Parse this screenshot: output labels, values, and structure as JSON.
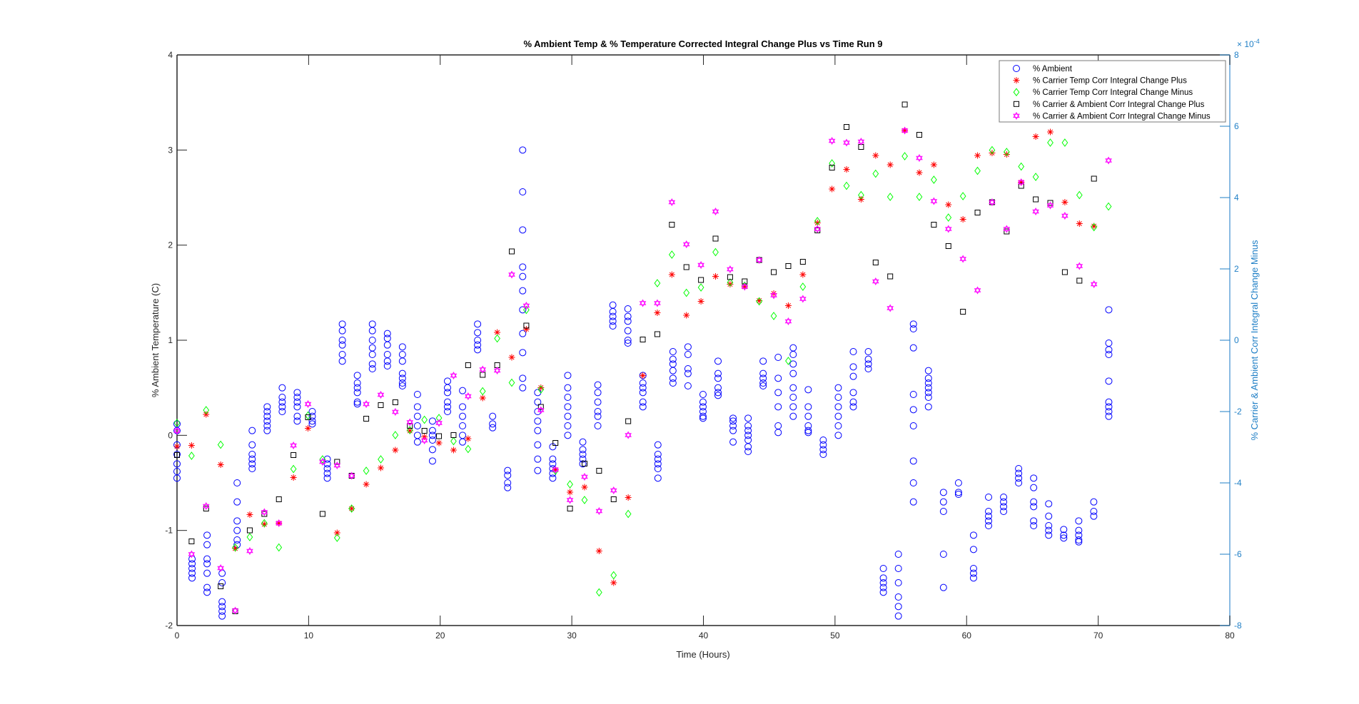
{
  "chart_data": {
    "type": "scatter",
    "title": "% Ambient Temp & % Temperature Corrected Integral Change Plus vs Time Run 9",
    "xlabel": "Time (Hours)",
    "ylabel_left": "% Ambient Temperature (C)",
    "ylabel_right": "% Carrier & Ambient Corr Integral Change Minus",
    "right_axis_exponent_label": "× 10",
    "right_axis_exponent": "-4",
    "xlim": [
      0,
      80
    ],
    "ylim_left": [
      -2,
      4
    ],
    "ylim_right": [
      -8,
      8
    ],
    "right_axis_scale": 0.0001,
    "xticks": [
      "0",
      "10",
      "20",
      "30",
      "40",
      "50",
      "60",
      "70",
      "80"
    ],
    "yticks_left": [
      "-2",
      "-1",
      "0",
      "1",
      "2",
      "3",
      "4"
    ],
    "yticks_right": [
      "-8",
      "-6",
      "-4",
      "-2",
      "0",
      "2",
      "4",
      "6",
      "8"
    ],
    "grid": false,
    "legend_position": "top-right",
    "axis_color": "#262626",
    "right_axis_color": "#1f7fc6",
    "series": [
      {
        "name": "% Ambient",
        "marker": "circle",
        "color": "#0000ff",
        "axis": "left",
        "time_start": 0,
        "time_step": 1.142,
        "groups": [
          [
            0.12,
            0.05,
            -0.1,
            -0.2,
            -0.3,
            -0.38,
            -0.45
          ],
          [
            -1.3,
            -1.35,
            -1.4,
            -1.45,
            -1.5
          ],
          [
            -1.05,
            -1.15,
            -1.3,
            -1.35,
            -1.45,
            -1.6,
            -1.65
          ],
          [
            -1.45,
            -1.55,
            -1.75,
            -1.8,
            -1.85,
            -1.9
          ],
          [
            -0.5,
            -0.7,
            -0.9,
            -1.0,
            -1.1,
            -1.15
          ],
          [
            0.05,
            -0.1,
            -0.2,
            -0.25,
            -0.3,
            -0.35
          ],
          [
            0.3,
            0.25,
            0.2,
            0.15,
            0.1,
            0.05
          ],
          [
            0.5,
            0.4,
            0.35,
            0.3,
            0.25
          ],
          [
            0.45,
            0.4,
            0.35,
            0.3,
            0.2,
            0.15
          ],
          [
            0.25,
            0.2,
            0.15,
            0.12
          ],
          [
            -0.25,
            -0.3,
            -0.35,
            -0.4,
            -0.45
          ],
          [
            1.17,
            1.1,
            1.0,
            0.95,
            0.85,
            0.78
          ],
          [
            0.63,
            0.55,
            0.5,
            0.45,
            0.35,
            0.33
          ],
          [
            1.17,
            1.1,
            1.0,
            0.92,
            0.85,
            0.75,
            0.7
          ],
          [
            1.07,
            1.02,
            0.95,
            0.85,
            0.78,
            0.73
          ],
          [
            0.93,
            0.85,
            0.78,
            0.65,
            0.6,
            0.55,
            0.52
          ],
          [
            0.43,
            0.3,
            0.2,
            0.1,
            0.0,
            -0.07
          ],
          [
            0.15,
            0.05,
            0.0,
            -0.05,
            -0.15,
            -0.27
          ],
          [
            0.57,
            0.5,
            0.45,
            0.35,
            0.3,
            0.25
          ],
          [
            0.47,
            0.3,
            0.2,
            0.1,
            0.0,
            -0.07
          ],
          [
            1.17,
            1.08,
            1.0,
            0.95,
            0.9
          ],
          [
            0.2,
            0.12,
            0.08
          ],
          [
            -0.37,
            -0.42,
            -0.5,
            -0.55
          ],
          [
            3.0,
            2.56,
            2.16,
            1.77,
            1.67,
            1.52,
            1.32,
            1.07,
            0.87,
            0.6,
            0.5
          ],
          [
            0.45,
            0.35,
            0.25,
            0.15,
            0.05,
            -0.1,
            -0.25,
            -0.37
          ],
          [
            -0.12,
            -0.25,
            -0.3,
            -0.35,
            -0.4,
            -0.45
          ],
          [
            0.63,
            0.5,
            0.4,
            0.3,
            0.2,
            0.1,
            0.0
          ],
          [
            -0.07,
            -0.15,
            -0.2,
            -0.25,
            -0.3
          ],
          [
            0.53,
            0.45,
            0.35,
            0.25,
            0.2,
            0.1
          ],
          [
            1.37,
            1.3,
            1.25,
            1.2,
            1.15
          ],
          [
            1.33,
            1.25,
            1.2,
            1.1,
            1.0,
            0.97
          ],
          [
            0.63,
            0.55,
            0.5,
            0.45,
            0.35,
            0.3
          ],
          [
            -0.1,
            -0.2,
            -0.25,
            -0.3,
            -0.35,
            -0.45
          ],
          [
            0.88,
            0.8,
            0.75,
            0.68,
            0.6,
            0.55
          ],
          [
            0.93,
            0.85,
            0.7,
            0.65,
            0.52
          ],
          [
            0.43,
            0.35,
            0.3,
            0.25,
            0.2,
            0.18
          ],
          [
            0.78,
            0.65,
            0.6,
            0.5,
            0.45,
            0.42
          ],
          [
            0.18,
            0.15,
            0.1,
            0.05,
            -0.07
          ],
          [
            0.18,
            0.1,
            0.05,
            0.0,
            -0.05,
            -0.12,
            -0.17
          ],
          [
            0.78,
            0.65,
            0.6,
            0.55,
            0.52
          ],
          [
            0.82,
            0.6,
            0.45,
            0.3,
            0.1,
            0.03
          ],
          [
            0.92,
            0.85,
            0.75,
            0.65,
            0.5,
            0.4,
            0.3,
            0.2
          ],
          [
            0.48,
            0.3,
            0.2,
            0.1,
            0.05,
            0.03
          ],
          [
            -0.05,
            -0.1,
            -0.15,
            -0.2
          ],
          [
            0.5,
            0.4,
            0.3,
            0.2,
            0.1,
            0.0
          ],
          [
            0.88,
            0.72,
            0.62,
            0.45,
            0.35,
            0.3
          ],
          [
            0.88,
            0.8,
            0.75,
            0.7
          ],
          [
            -1.4,
            -1.5,
            -1.55,
            -1.6,
            -1.65
          ],
          [
            -1.25,
            -1.4,
            -1.55,
            -1.7,
            -1.8,
            -1.9
          ],
          [
            1.17,
            1.12,
            0.92,
            0.43,
            0.27,
            0.1,
            -0.27,
            -0.5,
            -0.7
          ],
          [
            0.68,
            0.6,
            0.55,
            0.5,
            0.45,
            0.4,
            0.3
          ],
          [
            -0.6,
            -0.7,
            -0.8,
            -1.25,
            -1.6
          ],
          [
            -0.5,
            -0.6,
            -0.62
          ],
          [
            -1.05,
            -1.2,
            -1.4,
            -1.45,
            -1.5
          ],
          [
            -0.65,
            -0.8,
            -0.85,
            -0.9,
            -0.95
          ],
          [
            -0.65,
            -0.7,
            -0.75,
            -0.8
          ],
          [
            -0.35,
            -0.4,
            -0.45,
            -0.5
          ],
          [
            -0.45,
            -0.55,
            -0.7,
            -0.75,
            -0.9,
            -0.95
          ],
          [
            -0.72,
            -0.85,
            -0.95,
            -1.0,
            -1.05
          ],
          [
            -0.99,
            -1.05,
            -1.08
          ],
          [
            -0.9,
            -1.0,
            -1.05,
            -1.1,
            -1.12
          ],
          [
            -0.7,
            -0.8,
            -0.85
          ],
          [
            1.32,
            0.97,
            0.9,
            0.85,
            0.57,
            0.35,
            0.3,
            0.25,
            0.2
          ]
        ]
      },
      {
        "name": "% Carrier Temp Corr Integral Change Plus",
        "marker": "star",
        "color": "#ff0000",
        "axis": "right",
        "time_start": 0,
        "time_step": 1.106,
        "values_e4": [
          -2.98,
          -2.95,
          -2.08,
          -3.49,
          -5.84,
          -4.89,
          -5.16,
          -5.13,
          -3.85,
          -2.47,
          null,
          -5.4,
          -4.72,
          -4.04,
          -3.58,
          -3.08,
          -2.54,
          -2.71,
          -2.88,
          -3.08,
          -2.76,
          -1.62,
          0.22,
          -0.48,
          0.31,
          -1.33,
          -3.63,
          -4.26,
          -4.12,
          -5.91,
          -6.8,
          -4.41,
          -0.99,
          0.77,
          1.84,
          0.7,
          1.09,
          1.79,
          1.57,
          1.5,
          1.11,
          1.31,
          0.97,
          1.84,
          3.29,
          4.24,
          4.79,
          3.95,
          5.18,
          4.92,
          5.88,
          4.7,
          4.92,
          3.8,
          3.39,
          5.18,
          5.25,
          5.21,
          4.43,
          5.71,
          5.84,
          3.87,
          3.27,
          3.2
        ]
      },
      {
        "name": "% Carrier Temp Corr Integral Change Minus",
        "marker": "diamond",
        "color": "#00ff00",
        "axis": "right",
        "time_start": 0,
        "time_step": 1.106,
        "values_e4": [
          -2.32,
          -3.24,
          -1.96,
          -2.93,
          -5.81,
          -5.52,
          -5.13,
          -5.81,
          -3.61,
          -2.11,
          -3.34,
          -5.54,
          -4.72,
          -3.66,
          -3.34,
          -2.66,
          -2.52,
          -2.23,
          -2.18,
          -2.83,
          -3.05,
          -1.43,
          0.05,
          -1.19,
          0.85,
          -1.38,
          -3.66,
          -4.04,
          -4.48,
          -7.07,
          -6.59,
          -4.87,
          null,
          1.6,
          2.4,
          1.33,
          1.48,
          2.47,
          1.62,
          1.53,
          1.09,
          0.68,
          -0.58,
          1.5,
          3.34,
          4.96,
          4.33,
          4.07,
          4.67,
          4.02,
          5.16,
          4.02,
          4.5,
          3.44,
          4.04,
          4.75,
          5.33,
          5.28,
          4.87,
          4.58,
          5.54,
          5.54,
          4.07,
          3.17,
          3.75
        ]
      },
      {
        "name": "% Carrier & Ambient Corr Integral Change Plus",
        "marker": "square",
        "color": "#000000",
        "axis": "right",
        "time_start": 0,
        "time_step": 1.106,
        "values_e4": [
          -3.22,
          -5.64,
          -4.72,
          -6.9,
          -7.6,
          -5.33,
          -4.87,
          -4.46,
          -3.22,
          -2.16,
          -4.87,
          -3.41,
          -3.8,
          -2.2,
          -1.82,
          -1.74,
          -2.4,
          -2.54,
          -2.69,
          -2.66,
          -0.7,
          -0.97,
          -0.7,
          2.49,
          0.41,
          -1.87,
          -2.88,
          -4.72,
          -3.46,
          -3.66,
          -4.46,
          -2.27,
          0.02,
          0.17,
          3.24,
          2.05,
          1.69,
          2.85,
          1.77,
          1.65,
          2.25,
          1.91,
          2.08,
          2.2,
          3.08,
          4.84,
          5.98,
          5.42,
          2.18,
          1.79,
          6.61,
          5.76,
          3.24,
          2.64,
          0.8,
          3.58,
          3.87,
          3.05,
          4.33,
          3.95,
          3.85,
          1.91,
          1.67,
          4.53
        ]
      },
      {
        "name": "% Carrier & Ambient Corr Integral Change Minus",
        "marker": "hexagram",
        "color": "#ff00ff",
        "axis": "right",
        "time_start": 0,
        "time_step": 1.106,
        "values_e4": [
          -2.54,
          -6.0,
          -4.65,
          -6.39,
          -7.58,
          -5.91,
          -4.82,
          -5.13,
          -2.95,
          -1.79,
          -3.41,
          -3.51,
          -3.8,
          -1.79,
          -1.53,
          -2.01,
          -2.3,
          -2.81,
          -2.32,
          -0.99,
          -1.57,
          -0.82,
          -0.85,
          1.84,
          0.97,
          -1.96,
          -3.63,
          -4.48,
          -3.83,
          -4.79,
          -4.21,
          -2.66,
          1.04,
          1.04,
          3.87,
          2.69,
          2.11,
          3.61,
          1.99,
          1.5,
          2.25,
          1.26,
          0.53,
          1.16,
          3.12,
          5.59,
          5.54,
          5.57,
          1.65,
          0.9,
          5.88,
          5.11,
          3.9,
          3.12,
          2.28,
          1.4,
          3.87,
          3.12,
          4.43,
          3.61,
          3.78,
          3.49,
          2.08,
          1.57,
          5.04
        ]
      }
    ]
  }
}
